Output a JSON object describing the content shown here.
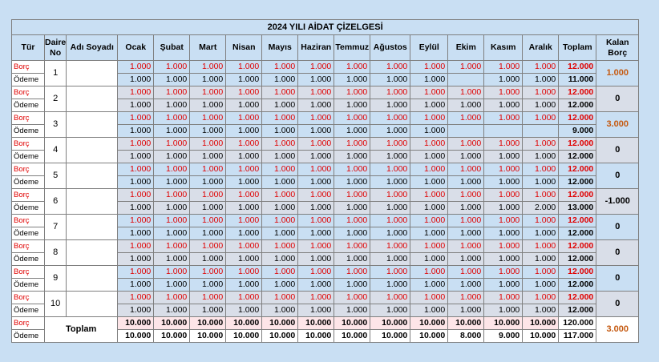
{
  "title": "2024 YILI AİDAT ÇİZELGESİ",
  "headers": [
    "Tür",
    "Daire No",
    "Adı Soyadı",
    "Ocak",
    "Şubat",
    "Mart",
    "Nisan",
    "Mayıs",
    "Haziran",
    "Temmuz",
    "Ağustos",
    "Eylül",
    "Ekim",
    "Kasım",
    "Aralık",
    "Toplam",
    "Kalan Borç"
  ],
  "type_labels": {
    "borc": "Borç",
    "odeme": "Ödeme"
  },
  "rows": [
    {
      "no": "1",
      "name": "",
      "borc": [
        "1.000",
        "1.000",
        "1.000",
        "1.000",
        "1.000",
        "1.000",
        "1.000",
        "1.000",
        "1.000",
        "1.000",
        "1.000",
        "1.000"
      ],
      "odeme": [
        "1.000",
        "1.000",
        "1.000",
        "1.000",
        "1.000",
        "1.000",
        "1.000",
        "1.000",
        "1.000",
        "",
        "1.000",
        "1.000"
      ],
      "borc_total": "12.000",
      "odeme_total": "11.000",
      "kalan": "1.000",
      "shade": false
    },
    {
      "no": "2",
      "name": "",
      "borc": [
        "1.000",
        "1.000",
        "1.000",
        "1.000",
        "1.000",
        "1.000",
        "1.000",
        "1.000",
        "1.000",
        "1.000",
        "1.000",
        "1.000"
      ],
      "odeme": [
        "1.000",
        "1.000",
        "1.000",
        "1.000",
        "1.000",
        "1.000",
        "1.000",
        "1.000",
        "1.000",
        "1.000",
        "1.000",
        "1.000"
      ],
      "borc_total": "12.000",
      "odeme_total": "12.000",
      "kalan": "0",
      "shade": true
    },
    {
      "no": "3",
      "name": "",
      "borc": [
        "1.000",
        "1.000",
        "1.000",
        "1.000",
        "1.000",
        "1.000",
        "1.000",
        "1.000",
        "1.000",
        "1.000",
        "1.000",
        "1.000"
      ],
      "odeme": [
        "1.000",
        "1.000",
        "1.000",
        "1.000",
        "1.000",
        "1.000",
        "1.000",
        "1.000",
        "1.000",
        "",
        "",
        ""
      ],
      "borc_total": "12.000",
      "odeme_total": "9.000",
      "kalan": "3.000",
      "shade": false
    },
    {
      "no": "4",
      "name": "",
      "borc": [
        "1.000",
        "1.000",
        "1.000",
        "1.000",
        "1.000",
        "1.000",
        "1.000",
        "1.000",
        "1.000",
        "1.000",
        "1.000",
        "1.000"
      ],
      "odeme": [
        "1.000",
        "1.000",
        "1.000",
        "1.000",
        "1.000",
        "1.000",
        "1.000",
        "1.000",
        "1.000",
        "1.000",
        "1.000",
        "1.000"
      ],
      "borc_total": "12.000",
      "odeme_total": "12.000",
      "kalan": "0",
      "shade": true
    },
    {
      "no": "5",
      "name": "",
      "borc": [
        "1.000",
        "1.000",
        "1.000",
        "1.000",
        "1.000",
        "1.000",
        "1.000",
        "1.000",
        "1.000",
        "1.000",
        "1.000",
        "1.000"
      ],
      "odeme": [
        "1.000",
        "1.000",
        "1.000",
        "1.000",
        "1.000",
        "1.000",
        "1.000",
        "1.000",
        "1.000",
        "1.000",
        "1.000",
        "1.000"
      ],
      "borc_total": "12.000",
      "odeme_total": "12.000",
      "kalan": "0",
      "shade": false
    },
    {
      "no": "6",
      "name": "",
      "borc": [
        "1.000",
        "1.000",
        "1.000",
        "1.000",
        "1.000",
        "1.000",
        "1.000",
        "1.000",
        "1.000",
        "1.000",
        "1.000",
        "1.000"
      ],
      "odeme": [
        "1.000",
        "1.000",
        "1.000",
        "1.000",
        "1.000",
        "1.000",
        "1.000",
        "1.000",
        "1.000",
        "1.000",
        "1.000",
        "2.000"
      ],
      "borc_total": "12.000",
      "odeme_total": "13.000",
      "kalan": "-1.000",
      "shade": true
    },
    {
      "no": "7",
      "name": "",
      "borc": [
        "1.000",
        "1.000",
        "1.000",
        "1.000",
        "1.000",
        "1.000",
        "1.000",
        "1.000",
        "1.000",
        "1.000",
        "1.000",
        "1.000"
      ],
      "odeme": [
        "1.000",
        "1.000",
        "1.000",
        "1.000",
        "1.000",
        "1.000",
        "1.000",
        "1.000",
        "1.000",
        "1.000",
        "1.000",
        "1.000"
      ],
      "borc_total": "12.000",
      "odeme_total": "12.000",
      "kalan": "0",
      "shade": false
    },
    {
      "no": "8",
      "name": "",
      "borc": [
        "1.000",
        "1.000",
        "1.000",
        "1.000",
        "1.000",
        "1.000",
        "1.000",
        "1.000",
        "1.000",
        "1.000",
        "1.000",
        "1.000"
      ],
      "odeme": [
        "1.000",
        "1.000",
        "1.000",
        "1.000",
        "1.000",
        "1.000",
        "1.000",
        "1.000",
        "1.000",
        "1.000",
        "1.000",
        "1.000"
      ],
      "borc_total": "12.000",
      "odeme_total": "12.000",
      "kalan": "0",
      "shade": true
    },
    {
      "no": "9",
      "name": "",
      "borc": [
        "1.000",
        "1.000",
        "1.000",
        "1.000",
        "1.000",
        "1.000",
        "1.000",
        "1.000",
        "1.000",
        "1.000",
        "1.000",
        "1.000"
      ],
      "odeme": [
        "1.000",
        "1.000",
        "1.000",
        "1.000",
        "1.000",
        "1.000",
        "1.000",
        "1.000",
        "1.000",
        "1.000",
        "1.000",
        "1.000"
      ],
      "borc_total": "12.000",
      "odeme_total": "12.000",
      "kalan": "0",
      "shade": false
    },
    {
      "no": "10",
      "name": "",
      "borc": [
        "1.000",
        "1.000",
        "1.000",
        "1.000",
        "1.000",
        "1.000",
        "1.000",
        "1.000",
        "1.000",
        "1.000",
        "1.000",
        "1.000"
      ],
      "odeme": [
        "1.000",
        "1.000",
        "1.000",
        "1.000",
        "1.000",
        "1.000",
        "1.000",
        "1.000",
        "1.000",
        "1.000",
        "1.000",
        "1.000"
      ],
      "borc_total": "12.000",
      "odeme_total": "12.000",
      "kalan": "0",
      "shade": true
    }
  ],
  "summary": {
    "label": "Toplam",
    "borc": [
      "10.000",
      "10.000",
      "10.000",
      "10.000",
      "10.000",
      "10.000",
      "10.000",
      "10.000",
      "10.000",
      "10.000",
      "10.000",
      "10.000"
    ],
    "odeme": [
      "10.000",
      "10.000",
      "10.000",
      "10.000",
      "10.000",
      "10.000",
      "10.000",
      "10.000",
      "10.000",
      "8.000",
      "9.000",
      "10.000"
    ],
    "borc_total": "120.000",
    "odeme_total": "117.000",
    "kalan": "3.000"
  },
  "colors": {
    "borc": "#e00000",
    "kalan_positive": "#c55a11",
    "header_bg": "#c9dff3",
    "shade": "#d9dee8",
    "summary_pink": "#fde5e8"
  }
}
